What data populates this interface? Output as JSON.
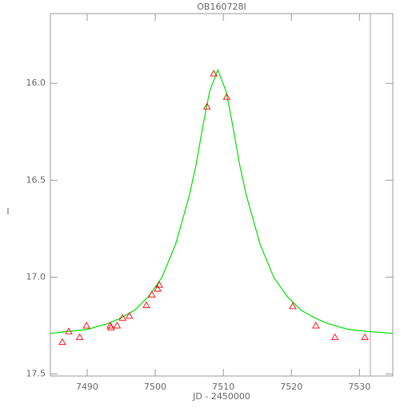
{
  "chart_data": {
    "type": "scatter",
    "title": "OB160728I",
    "x_label": "JD - 2450000",
    "y_label": "I",
    "xlim": [
      7484.6,
      7534.9
    ],
    "ylim": [
      17.51,
      15.64
    ],
    "xticks": [
      7490,
      7500,
      7510,
      7520,
      7530
    ],
    "yticks": [
      {
        "value": 16,
        "label": "16.0"
      },
      16.5,
      {
        "value": 17,
        "label": "17.0"
      },
      17.5
    ],
    "marker_x": 7531.6,
    "marker_color": "#b0b0c8",
    "series": [
      {
        "style": "points",
        "color": "#ff0000",
        "x": [
          7486.35,
          7487.3,
          7488.9,
          7489.9,
          7493.4,
          7493.5,
          7494.4,
          7495.2,
          7496.2,
          7498.7,
          7499.5,
          7500.35,
          7500.6,
          7507.6,
          7508.6,
          7510.5,
          7520.2,
          7523.6,
          7526.4,
          7530.8
        ],
        "values": [
          17.335,
          17.28,
          17.31,
          17.25,
          17.25,
          17.26,
          17.25,
          17.21,
          17.2,
          17.145,
          17.09,
          17.06,
          17.04,
          16.12,
          15.95,
          16.07,
          17.15,
          17.25,
          17.31,
          17.31
        ]
      },
      {
        "style": "line",
        "color": "#00e000",
        "x": [
          7484.6,
          7487.2,
          7490,
          7493,
          7495,
          7497,
          7499,
          7501,
          7503,
          7505,
          7506,
          7507,
          7508,
          7509.2,
          7510.4,
          7511.4,
          7512.4,
          7513.4,
          7515.4,
          7517.4,
          7519.4,
          7521.4,
          7523.4,
          7525.4,
          7528.4,
          7531.2,
          7534.9
        ],
        "values": [
          17.29,
          17.28,
          17.27,
          17.24,
          17.21,
          17.17,
          17.1,
          17.0,
          16.83,
          16.58,
          16.42,
          16.22,
          16.04,
          15.93,
          16.04,
          16.22,
          16.42,
          16.58,
          16.83,
          17.0,
          17.1,
          17.17,
          17.21,
          17.24,
          17.27,
          17.28,
          17.29
        ]
      }
    ]
  }
}
